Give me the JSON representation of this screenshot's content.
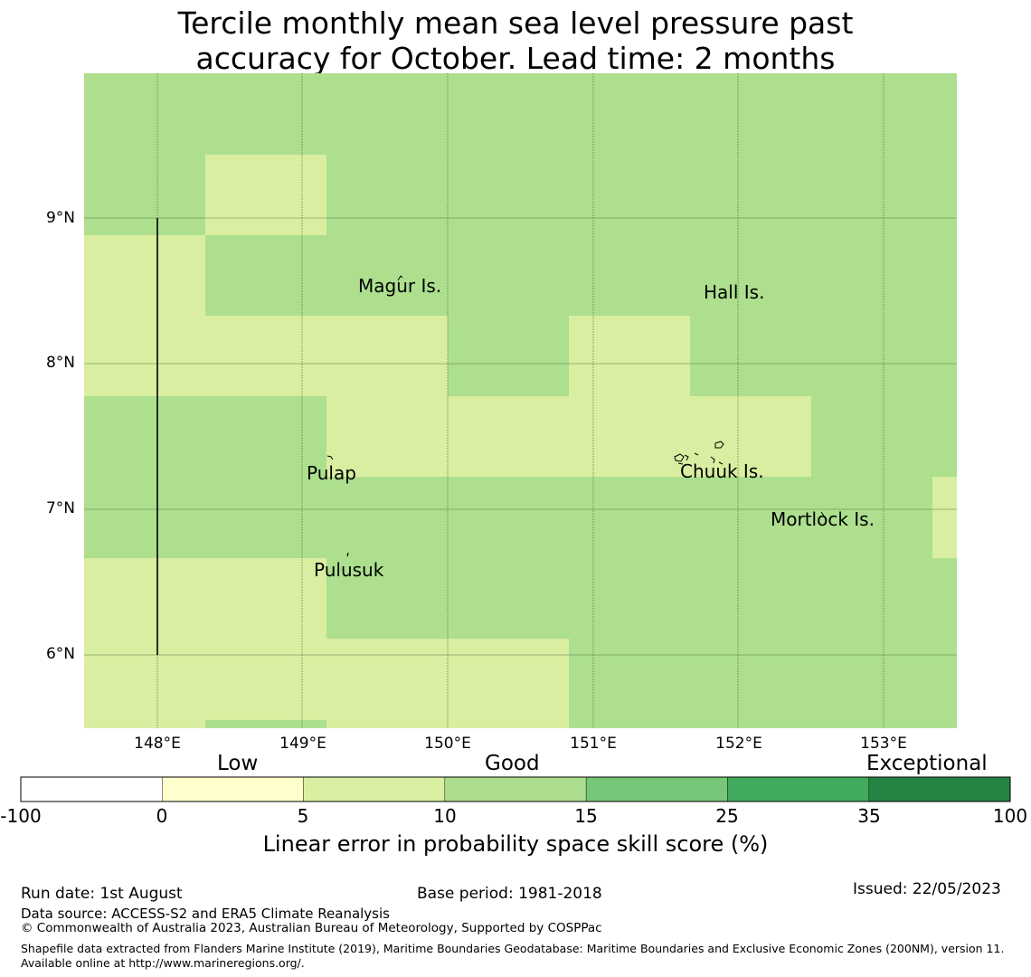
{
  "title": {
    "line1": "Tercile monthly mean sea level pressure past",
    "line2": "accuracy for October. Lead time: 2 months"
  },
  "map": {
    "lat_labels": [
      "9°N",
      "8°N",
      "7°N",
      "6°N"
    ],
    "lon_labels": [
      "148°E",
      "149°E",
      "150°E",
      "151°E",
      "152°E",
      "153°E"
    ],
    "places": {
      "magur": "Magur Is.",
      "hall": "Hall Is.",
      "pulap": "Pulap",
      "chuuk": "Chuuk Is.",
      "mortlock": "Mortlock Is.",
      "pulusuk": "Pulusuk"
    },
    "colors": {
      "low_5_10": "#d9eea0",
      "good_10_15": "#addf8e"
    }
  },
  "colorbar": {
    "categories": {
      "low": "Low",
      "good": "Good",
      "exceptional": "Exceptional"
    },
    "ticks": [
      "-100",
      "0",
      "5",
      "10",
      "15",
      "25",
      "35",
      "100"
    ],
    "colors": [
      "#ffffff",
      "#ffffcc",
      "#d9f0a3",
      "#addd8e",
      "#78c679",
      "#41ab5d",
      "#238443"
    ],
    "label": "Linear error in probability space skill score (%)"
  },
  "footer": {
    "run_date": "Run date: 1st August",
    "base_period": "Base period: 1981-2018",
    "issued": "Issued: 22/05/2023",
    "data_source": "Data source: ACCESS-S2 and ERA5 Climate Reanalysis",
    "copyright": "© Commonwealth of Australia 2023, Australian Bureau of Meteorology, Supported by COSPPac",
    "shapefile": "Shapefile data extracted from Flanders Marine Institute (2019), Maritime Boundaries Geodatabase: Maritime Boundaries and Exclusive Economic Zones (200NM), version 11. Available online at http://www.marineregions.org/."
  }
}
